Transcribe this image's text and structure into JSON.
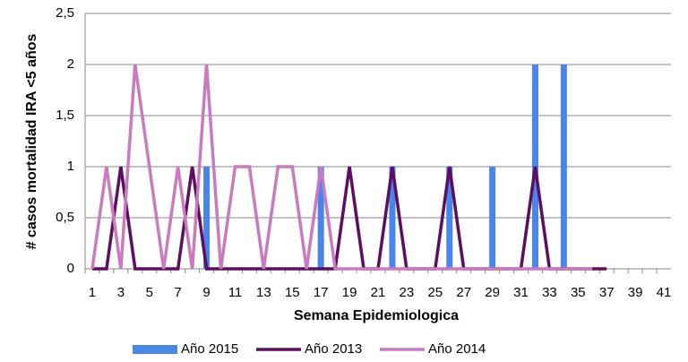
{
  "chart_data": {
    "type": "bar-line",
    "x_label": "Semana Epidemiologica",
    "y_label": "# casos mortalidad IRA <5 años",
    "categories": [
      1,
      null,
      3,
      null,
      5,
      null,
      7,
      null,
      9,
      null,
      11,
      null,
      13,
      null,
      15,
      null,
      17,
      null,
      19,
      null,
      21,
      null,
      23,
      null,
      25,
      null,
      27,
      null,
      29,
      null,
      31,
      null,
      33,
      null,
      35,
      null,
      37,
      null,
      39,
      null,
      41
    ],
    "ylim": [
      0,
      2.5
    ],
    "yticks": [
      0,
      {
        "value": 0.5,
        "label": "0,5"
      },
      1,
      {
        "value": 1.5,
        "label": "1,5"
      },
      2,
      {
        "value": 2.5,
        "label": "2,5"
      }
    ],
    "grid": true,
    "legend": "bottom",
    "series": [
      {
        "name": "Año 2015",
        "kind": "bar",
        "color": "#4a86e8",
        "values": [
          0,
          0,
          0,
          0,
          0,
          0,
          0,
          0,
          1,
          0,
          0,
          0,
          0,
          0,
          0,
          0,
          1,
          0,
          0,
          0,
          0,
          1,
          0,
          0,
          0,
          1,
          0,
          0,
          1,
          0,
          0,
          2,
          0,
          2,
          0,
          0,
          0,
          null,
          null,
          null,
          null
        ]
      },
      {
        "name": "Año 2013",
        "kind": "line",
        "color": "#5c0f5f",
        "values": [
          0,
          0,
          1,
          0,
          0,
          0,
          0,
          1,
          0,
          0,
          0,
          0,
          0,
          0,
          0,
          0,
          0,
          0,
          1,
          0,
          0,
          1,
          0,
          0,
          0,
          1,
          0,
          0,
          0,
          0,
          0,
          1,
          0,
          0,
          0,
          0,
          0,
          null,
          null,
          null,
          null
        ]
      },
      {
        "name": "Año 2014",
        "kind": "line",
        "color": "#c97bbf",
        "values": [
          0,
          1,
          0,
          2,
          1,
          0,
          1,
          0,
          2,
          0,
          1,
          1,
          0,
          1,
          1,
          0,
          1,
          0,
          0,
          0,
          0,
          0,
          0,
          0,
          0,
          0,
          0,
          0,
          0,
          0,
          0,
          0,
          0,
          0,
          0,
          0,
          null,
          null,
          null,
          null,
          null
        ]
      }
    ]
  }
}
